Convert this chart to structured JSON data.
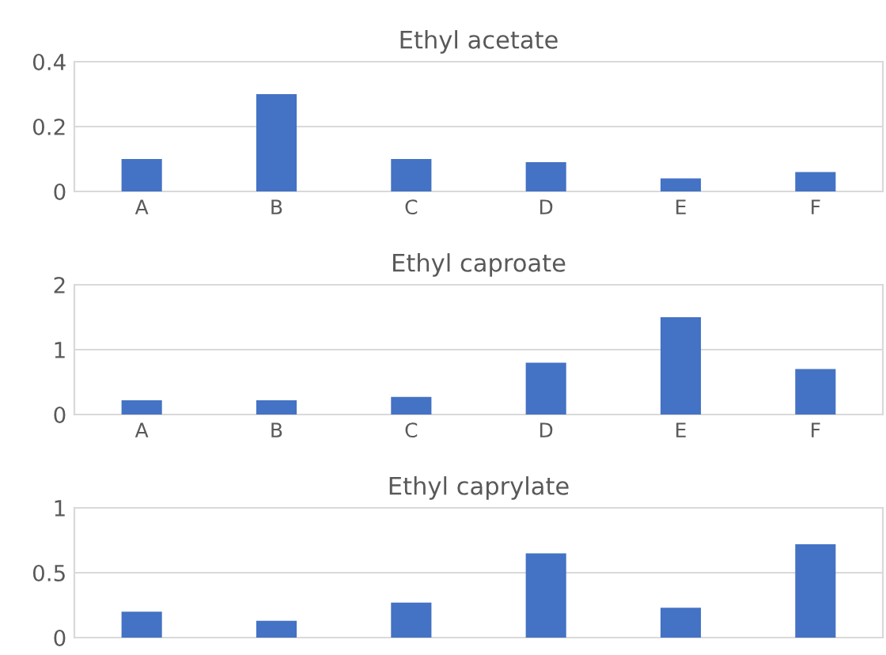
{
  "chart_data": [
    {
      "type": "bar",
      "title": "Ethyl acetate",
      "categories": [
        "A",
        "B",
        "C",
        "D",
        "E",
        "F"
      ],
      "values": [
        0.1,
        0.3,
        0.1,
        0.09,
        0.04,
        0.06
      ],
      "color": "#4472c4",
      "ylim": [
        0,
        0.4
      ],
      "yticks": [
        0,
        0.2,
        0.4
      ],
      "grid": "y"
    },
    {
      "type": "bar",
      "title": "Ethyl caproate",
      "categories": [
        "A",
        "B",
        "C",
        "D",
        "E",
        "F"
      ],
      "values": [
        0.22,
        0.22,
        0.27,
        0.8,
        1.5,
        0.7
      ],
      "color": "#4472c4",
      "ylim": [
        0,
        2
      ],
      "yticks": [
        0,
        1,
        2
      ],
      "grid": "y"
    },
    {
      "type": "bar",
      "title": "Ethyl caprylate",
      "categories": [
        null,
        null,
        null,
        null,
        null,
        null
      ],
      "values": [
        0.2,
        0.13,
        0.27,
        0.65,
        0.23,
        0.72
      ],
      "color": "#4472c4",
      "ylim": [
        0,
        1
      ],
      "yticks": [
        0,
        0.5,
        1
      ],
      "grid": "y",
      "tick_labels": "y"
    }
  ]
}
